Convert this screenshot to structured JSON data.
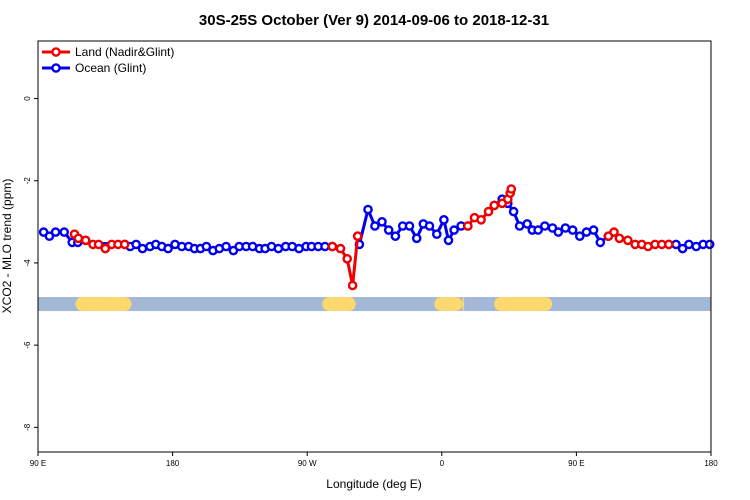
{
  "chart_data": {
    "type": "line",
    "title": "30S-25S October (Ver 9)   2014-09-06 to 2018-12-31",
    "xlabel": "Longitude (deg E)",
    "ylabel": "XCO2 - MLO trend (ppm)",
    "xlim": [
      90,
      450
    ],
    "ylim": [
      -8.6,
      1.4
    ],
    "x_ticks": [
      {
        "value": 90,
        "label": "90 E"
      },
      {
        "value": 162,
        "label": "180"
      },
      {
        "value": 234,
        "label": "90 W"
      },
      {
        "value": 306,
        "label": "0"
      },
      {
        "value": 378,
        "label": "90 E"
      },
      {
        "value": 450,
        "label": "180"
      }
    ],
    "y_ticks": [
      {
        "value": 0,
        "label": "0"
      },
      {
        "value": -2,
        "label": "-2"
      },
      {
        "value": -4,
        "label": "-4"
      },
      {
        "value": -6,
        "label": "-6"
      },
      {
        "value": -8,
        "label": "-8"
      }
    ],
    "legend": {
      "position": "top-left"
    },
    "grid": false,
    "land_band": {
      "y": -5.0,
      "ocean_color": "#a3b8d6",
      "land_color": "#fcd86e",
      "land_ranges": [
        [
          110,
          140
        ],
        [
          242,
          260
        ],
        [
          302,
          317
        ],
        [
          317,
          318
        ],
        [
          334,
          365
        ]
      ]
    },
    "series": [
      {
        "name": "Land (Nadir&Glint)",
        "color": "#ee0000",
        "segments": [
          [
            [
              109.5,
              -3.3
            ],
            [
              111.6,
              -3.4
            ],
            [
              115.5,
              -3.45
            ],
            [
              119.4,
              -3.55
            ],
            [
              122.4,
              -3.55
            ],
            [
              126.0,
              -3.65
            ],
            [
              129.4,
              -3.55
            ],
            [
              132.8,
              -3.55
            ],
            [
              136.4,
              -3.55
            ]
          ],
          [
            [
              247.5,
              -3.6
            ],
            [
              251.8,
              -3.65
            ],
            [
              255.4,
              -3.9
            ],
            [
              258.3,
              -4.55
            ],
            [
              261.0,
              -3.35
            ]
          ],
          [
            [
              319.9,
              -3.1
            ],
            [
              323.5,
              -2.9
            ],
            [
              327.0,
              -2.95
            ],
            [
              331.0,
              -2.75
            ],
            [
              334.1,
              -2.6
            ],
            [
              338.3,
              -2.55
            ],
            [
              341.3,
              -2.45
            ],
            [
              342.6,
              -2.3
            ],
            [
              343.2,
              -2.2
            ]
          ],
          [
            [
              395.1,
              -3.35
            ],
            [
              398.1,
              -3.25
            ],
            [
              401.0,
              -3.4
            ],
            [
              405.5,
              -3.45
            ],
            [
              409.4,
              -3.55
            ],
            [
              413.0,
              -3.55
            ],
            [
              416.3,
              -3.6
            ],
            [
              420.1,
              -3.55
            ],
            [
              423.7,
              -3.55
            ],
            [
              427.4,
              -3.55
            ]
          ]
        ]
      },
      {
        "name": "Ocean (Glint)",
        "color": "#0000ee",
        "segments": [
          [
            [
              93.0,
              -3.25
            ],
            [
              96.1,
              -3.35
            ],
            [
              99.4,
              -3.25
            ],
            [
              104.0,
              -3.25
            ],
            [
              108.3,
              -3.5
            ],
            [
              111.3,
              -3.5
            ],
            [
              136.4,
              -3.55
            ],
            [
              139.3,
              -3.6
            ],
            [
              142.5,
              -3.55
            ],
            [
              145.9,
              -3.65
            ],
            [
              149.9,
              -3.6
            ],
            [
              153.0,
              -3.55
            ],
            [
              156.2,
              -3.6
            ],
            [
              159.6,
              -3.65
            ],
            [
              163.3,
              -3.55
            ],
            [
              166.9,
              -3.6
            ],
            [
              170.6,
              -3.6
            ],
            [
              173.7,
              -3.65
            ],
            [
              176.9,
              -3.65
            ],
            [
              180.1,
              -3.6
            ],
            [
              183.6,
              -3.7
            ],
            [
              187.0,
              -3.65
            ],
            [
              190.6,
              -3.6
            ],
            [
              194.5,
              -3.7
            ],
            [
              197.6,
              -3.6
            ],
            [
              201.3,
              -3.6
            ],
            [
              204.8,
              -3.6
            ],
            [
              208.5,
              -3.65
            ],
            [
              211.5,
              -3.65
            ],
            [
              214.9,
              -3.6
            ],
            [
              218.6,
              -3.65
            ],
            [
              222.5,
              -3.6
            ],
            [
              226.0,
              -3.6
            ],
            [
              229.6,
              -3.65
            ],
            [
              233.4,
              -3.6
            ],
            [
              236.3,
              -3.6
            ],
            [
              239.9,
              -3.6
            ],
            [
              243.5,
              -3.6
            ],
            [
              247.5,
              -3.6
            ]
          ],
          [
            [
              261.0,
              -3.35
            ],
            [
              261.9,
              -3.55
            ],
            [
              266.5,
              -2.7
            ],
            [
              270.2,
              -3.1
            ],
            [
              274.0,
              -3.0
            ],
            [
              277.6,
              -3.2
            ],
            [
              281.2,
              -3.35
            ],
            [
              285.1,
              -3.1
            ],
            [
              288.7,
              -3.1
            ],
            [
              292.6,
              -3.4
            ],
            [
              296.1,
              -3.05
            ],
            [
              299.4,
              -3.1
            ],
            [
              303.3,
              -3.3
            ],
            [
              307.1,
              -2.95
            ],
            [
              309.6,
              -3.45
            ],
            [
              312.6,
              -3.2
            ],
            [
              316.3,
              -3.1
            ],
            [
              319.9,
              -3.1
            ]
          ],
          [
            [
              334.1,
              -2.6
            ],
            [
              338.3,
              -2.45
            ],
            [
              341.3,
              -2.55
            ],
            [
              344.4,
              -2.75
            ],
            [
              347.6,
              -3.1
            ],
            [
              351.7,
              -3.05
            ],
            [
              354.4,
              -3.2
            ],
            [
              357.5,
              -3.2
            ],
            [
              361.1,
              -3.1
            ],
            [
              365.2,
              -3.15
            ],
            [
              368.3,
              -3.25
            ],
            [
              372.1,
              -3.15
            ],
            [
              376.0,
              -3.2
            ],
            [
              379.8,
              -3.35
            ],
            [
              383.4,
              -3.25
            ],
            [
              387.2,
              -3.2
            ],
            [
              390.8,
              -3.5
            ],
            [
              395.1,
              -3.35
            ]
          ],
          [
            [
              427.4,
              -3.55
            ],
            [
              431.3,
              -3.55
            ],
            [
              434.8,
              -3.65
            ],
            [
              438.2,
              -3.55
            ],
            [
              442.1,
              -3.6
            ],
            [
              445.8,
              -3.55
            ],
            [
              449.3,
              -3.55
            ]
          ]
        ]
      }
    ]
  }
}
